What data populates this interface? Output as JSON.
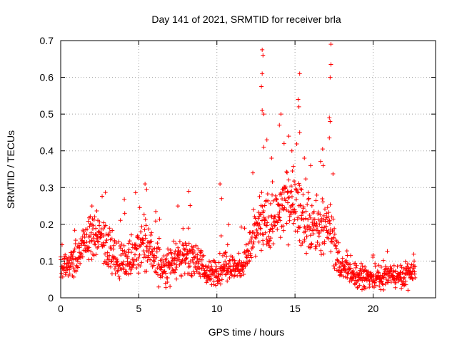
{
  "chart_data": {
    "type": "scatter",
    "title": "Day 141 of 2021, SRMTID for receiver brla",
    "xlabel": "GPS time / hours",
    "ylabel": "SRMTID / TECUs",
    "xlim": [
      0,
      24
    ],
    "ylim": [
      0,
      0.7
    ],
    "x_ticks": [
      0,
      5,
      10,
      15,
      20
    ],
    "x_tick_labels": [
      "0",
      "5",
      "10",
      "15",
      "20"
    ],
    "y_ticks": [
      0,
      0.1,
      0.2,
      0.3,
      0.4,
      0.5,
      0.6,
      0.7
    ],
    "y_tick_labels": [
      "0",
      "0.1",
      "0.2",
      "0.3",
      "0.4",
      "0.5",
      "0.6",
      "0.7"
    ],
    "grid": true,
    "marker": "+",
    "color": "#ff0000",
    "envelope": [
      {
        "x": 0.0,
        "y": 0.08,
        "spread": 0.03
      },
      {
        "x": 1.0,
        "y": 0.1,
        "spread": 0.04
      },
      {
        "x": 1.5,
        "y": 0.15,
        "spread": 0.05
      },
      {
        "x": 2.0,
        "y": 0.17,
        "spread": 0.05
      },
      {
        "x": 3.0,
        "y": 0.15,
        "spread": 0.06
      },
      {
        "x": 3.5,
        "y": 0.1,
        "spread": 0.05
      },
      {
        "x": 4.5,
        "y": 0.11,
        "spread": 0.05
      },
      {
        "x": 5.5,
        "y": 0.14,
        "spread": 0.06
      },
      {
        "x": 6.5,
        "y": 0.08,
        "spread": 0.04
      },
      {
        "x": 7.5,
        "y": 0.11,
        "spread": 0.05
      },
      {
        "x": 8.5,
        "y": 0.12,
        "spread": 0.05
      },
      {
        "x": 9.5,
        "y": 0.06,
        "spread": 0.03
      },
      {
        "x": 10.5,
        "y": 0.09,
        "spread": 0.04
      },
      {
        "x": 11.5,
        "y": 0.08,
        "spread": 0.03
      },
      {
        "x": 12.0,
        "y": 0.12,
        "spread": 0.05
      },
      {
        "x": 12.7,
        "y": 0.2,
        "spread": 0.07
      },
      {
        "x": 13.5,
        "y": 0.2,
        "spread": 0.08
      },
      {
        "x": 14.3,
        "y": 0.26,
        "spread": 0.08
      },
      {
        "x": 15.0,
        "y": 0.27,
        "spread": 0.08
      },
      {
        "x": 15.7,
        "y": 0.2,
        "spread": 0.07
      },
      {
        "x": 16.5,
        "y": 0.18,
        "spread": 0.06
      },
      {
        "x": 17.2,
        "y": 0.2,
        "spread": 0.07
      },
      {
        "x": 17.8,
        "y": 0.09,
        "spread": 0.04
      },
      {
        "x": 18.5,
        "y": 0.07,
        "spread": 0.03
      },
      {
        "x": 20.0,
        "y": 0.05,
        "spread": 0.03
      },
      {
        "x": 21.0,
        "y": 0.06,
        "spread": 0.03
      },
      {
        "x": 22.0,
        "y": 0.06,
        "spread": 0.03
      },
      {
        "x": 22.7,
        "y": 0.08,
        "spread": 0.03
      }
    ],
    "x_range_of_data": [
      0.0,
      22.7
    ],
    "point_count": 1400,
    "outliers": [
      {
        "x": 12.9,
        "y": 0.675
      },
      {
        "x": 12.95,
        "y": 0.66
      },
      {
        "x": 12.9,
        "y": 0.61
      },
      {
        "x": 12.85,
        "y": 0.575
      },
      {
        "x": 12.9,
        "y": 0.51
      },
      {
        "x": 13.0,
        "y": 0.5
      },
      {
        "x": 14.1,
        "y": 0.5
      },
      {
        "x": 14.0,
        "y": 0.47
      },
      {
        "x": 14.6,
        "y": 0.44
      },
      {
        "x": 15.3,
        "y": 0.61
      },
      {
        "x": 15.2,
        "y": 0.54
      },
      {
        "x": 15.25,
        "y": 0.52
      },
      {
        "x": 15.3,
        "y": 0.45
      },
      {
        "x": 17.3,
        "y": 0.69
      },
      {
        "x": 17.3,
        "y": 0.635
      },
      {
        "x": 17.25,
        "y": 0.6
      },
      {
        "x": 17.2,
        "y": 0.49
      },
      {
        "x": 17.25,
        "y": 0.48
      },
      {
        "x": 17.2,
        "y": 0.435
      },
      {
        "x": 5.4,
        "y": 0.31
      },
      {
        "x": 5.5,
        "y": 0.295
      },
      {
        "x": 8.2,
        "y": 0.29
      },
      {
        "x": 10.2,
        "y": 0.31
      },
      {
        "x": 10.3,
        "y": 0.27
      },
      {
        "x": 7.5,
        "y": 0.25
      },
      {
        "x": 2.0,
        "y": 0.25
      },
      {
        "x": 4.1,
        "y": 0.23
      },
      {
        "x": 13.2,
        "y": 0.43
      },
      {
        "x": 13.5,
        "y": 0.38
      },
      {
        "x": 14.3,
        "y": 0.42
      },
      {
        "x": 15.6,
        "y": 0.38
      },
      {
        "x": 16.0,
        "y": 0.36
      },
      {
        "x": 16.8,
        "y": 0.36
      },
      {
        "x": 12.3,
        "y": 0.34
      },
      {
        "x": 13.0,
        "y": 0.41
      },
      {
        "x": 14.8,
        "y": 0.4
      }
    ]
  }
}
